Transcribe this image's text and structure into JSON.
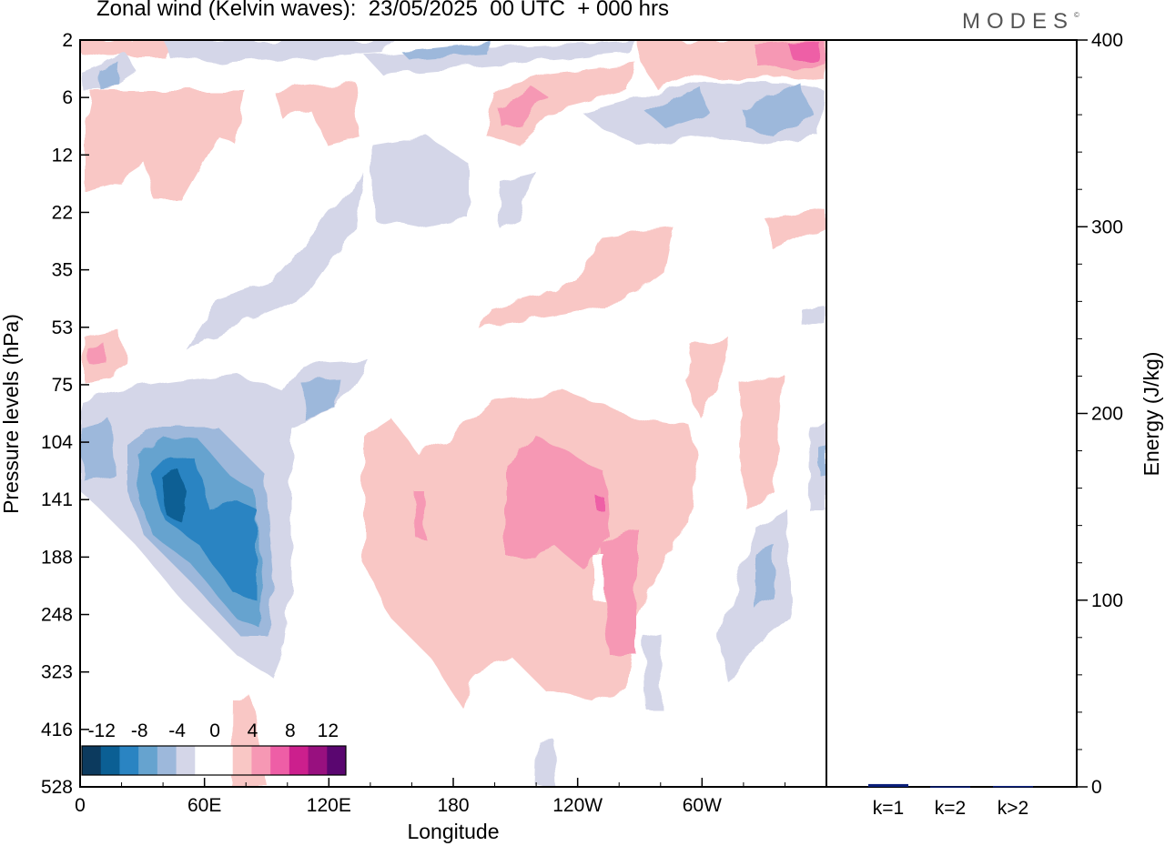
{
  "title": "Zonal wind (Kelvin waves):  23/05/2025  00 UTC  + 000 hrs",
  "logo": "MODES",
  "chart_data": [
    {
      "type": "heatmap",
      "title": "Zonal wind (Kelvin waves):  23/05/2025  00 UTC  + 000 hrs",
      "xlabel": "Longitude",
      "ylabel": "Pressure levels (hPa)",
      "x_ticks": [
        "0",
        "60E",
        "120E",
        "180",
        "120W",
        "60W"
      ],
      "y_ticks": [
        "2",
        "6",
        "12",
        "22",
        "35",
        "53",
        "75",
        "104",
        "141",
        "188",
        "248",
        "323",
        "416",
        "528"
      ],
      "colorbar": {
        "labels": [
          "-12",
          "-8",
          "-4",
          "0",
          "4",
          "8",
          "12"
        ],
        "colors": [
          "#0c3a5e",
          "#0b5f94",
          "#2a84c2",
          "#66a3cf",
          "#9db8db",
          "#d4d6e8",
          "#ffffff",
          "#ffffff",
          "#f9c7c5",
          "#f698b4",
          "#ee5ea6",
          "#cc1f8d",
          "#98107f",
          "#5a0670"
        ]
      },
      "regions": [
        {
          "sign": "negative",
          "level": 1,
          "x": 140,
          "y": [
            30,
            45
          ],
          "value": -2
        },
        {
          "sign": "negative",
          "level": 1,
          "x": 40,
          "y": [
            110,
            170
          ],
          "value": -2
        },
        {
          "sign": "negative",
          "level": 2,
          "x": 20,
          "y": [
            120,
            200
          ],
          "value": -6
        },
        {
          "sign": "negative",
          "level": 3,
          "x": 45,
          "y": [
            125,
            220
          ],
          "value": -9
        },
        {
          "sign": "negative",
          "level": 4,
          "x": 45,
          "y": [
            130,
            150
          ],
          "value": -11
        },
        {
          "sign": "positive",
          "level": 1,
          "x": 180,
          "y": [
            104,
            300
          ],
          "value": 2
        },
        {
          "sign": "positive",
          "level": 2,
          "x": 240,
          "y": [
            120,
            180
          ],
          "value": 6
        },
        {
          "sign": "positive",
          "level": 2,
          "x": 215,
          "y": [
            5,
            8
          ],
          "value": 6
        },
        {
          "sign": "negative",
          "level": 2,
          "x": 300,
          "y": [
            6,
            10
          ],
          "value": -5
        },
        {
          "sign": "positive",
          "level": 3,
          "x": 352,
          "y": [
            2,
            3
          ],
          "value": 9
        }
      ]
    },
    {
      "type": "bar",
      "ylabel": "Energy (J/kg)",
      "categories": [
        "k=1",
        "k=2",
        "k>2"
      ],
      "values": [
        1.5,
        0.3,
        0.5
      ],
      "ylim": [
        0,
        400
      ],
      "y_ticks": [
        "0",
        "100",
        "200",
        "300",
        "400"
      ],
      "bar_color": "#0b1f7a"
    }
  ]
}
